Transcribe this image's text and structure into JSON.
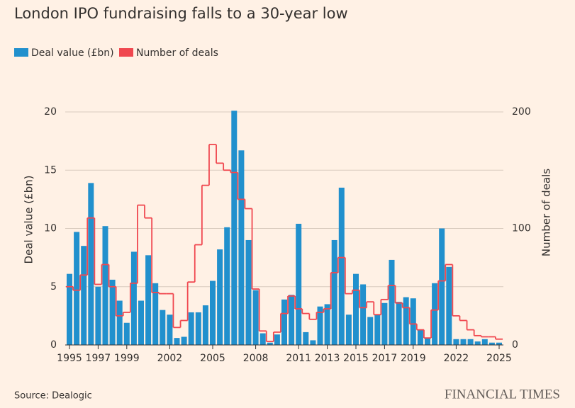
{
  "chart_data": {
    "type": "bar",
    "title": "London IPO fundraising falls to a 30-year low",
    "source": "Source: Dealogic",
    "logo": "FINANCIAL TIMES",
    "y_label": "Deal value (£bn)",
    "y2_label": "Number of deals",
    "categories": [
      "1995",
      null,
      null,
      null,
      "1997",
      null,
      null,
      null,
      "1999",
      null,
      null,
      null,
      null,
      null,
      "2002",
      null,
      null,
      null,
      null,
      null,
      "2005",
      null,
      null,
      null,
      null,
      null,
      "2008",
      null,
      null,
      null,
      null,
      null,
      "2011",
      null,
      null,
      null,
      "2013",
      null,
      null,
      null,
      "2015",
      null,
      null,
      null,
      "2017",
      null,
      null,
      null,
      "2019",
      null,
      null,
      null,
      null,
      null,
      "2022",
      null,
      null,
      null,
      null,
      null,
      "2025"
    ],
    "series": [
      {
        "name": "Deal value (£bn)",
        "type": "bar",
        "color": "#2190cd",
        "values": [
          6.1,
          9.7,
          8.5,
          13.9,
          5.0,
          10.2,
          5.6,
          3.8,
          1.9,
          8.0,
          3.8,
          7.7,
          5.3,
          3.0,
          2.6,
          0.6,
          0.7,
          2.8,
          2.8,
          3.4,
          5.5,
          8.2,
          10.1,
          20.1,
          16.7,
          9.0,
          4.7,
          1.0,
          0.2,
          0.9,
          3.9,
          4.3,
          10.4,
          1.1,
          0.4,
          3.3,
          3.5,
          9.0,
          13.5,
          2.6,
          6.1,
          5.2,
          2.4,
          2.6,
          3.6,
          7.3,
          3.7,
          4.1,
          4.0,
          1.3,
          0.6,
          5.3,
          10.0,
          6.7,
          0.5,
          0.5,
          0.5,
          0.3,
          0.5,
          0.2,
          0.2
        ]
      },
      {
        "name": "Number of deals",
        "type": "step",
        "axis": "y2",
        "color": "#f0474f",
        "values": [
          50,
          47,
          60,
          109,
          52,
          69,
          50,
          25,
          28,
          53,
          120,
          109,
          45,
          44,
          44,
          15,
          21,
          54,
          86,
          137,
          172,
          156,
          150,
          148,
          125,
          117,
          48,
          12,
          3,
          11,
          27,
          42,
          31,
          27,
          22,
          28,
          31,
          62,
          75,
          44,
          47,
          32,
          37,
          26,
          39,
          51,
          36,
          32,
          18,
          13,
          6,
          30,
          55,
          69,
          25,
          21,
          13,
          8,
          7,
          7,
          5
        ]
      }
    ],
    "ylim": [
      0,
      20
    ],
    "yticks": [
      0,
      5,
      10,
      15,
      20
    ],
    "y2lim": [
      0,
      200
    ],
    "y2ticks": [
      0,
      100,
      200
    ],
    "grid": true
  }
}
